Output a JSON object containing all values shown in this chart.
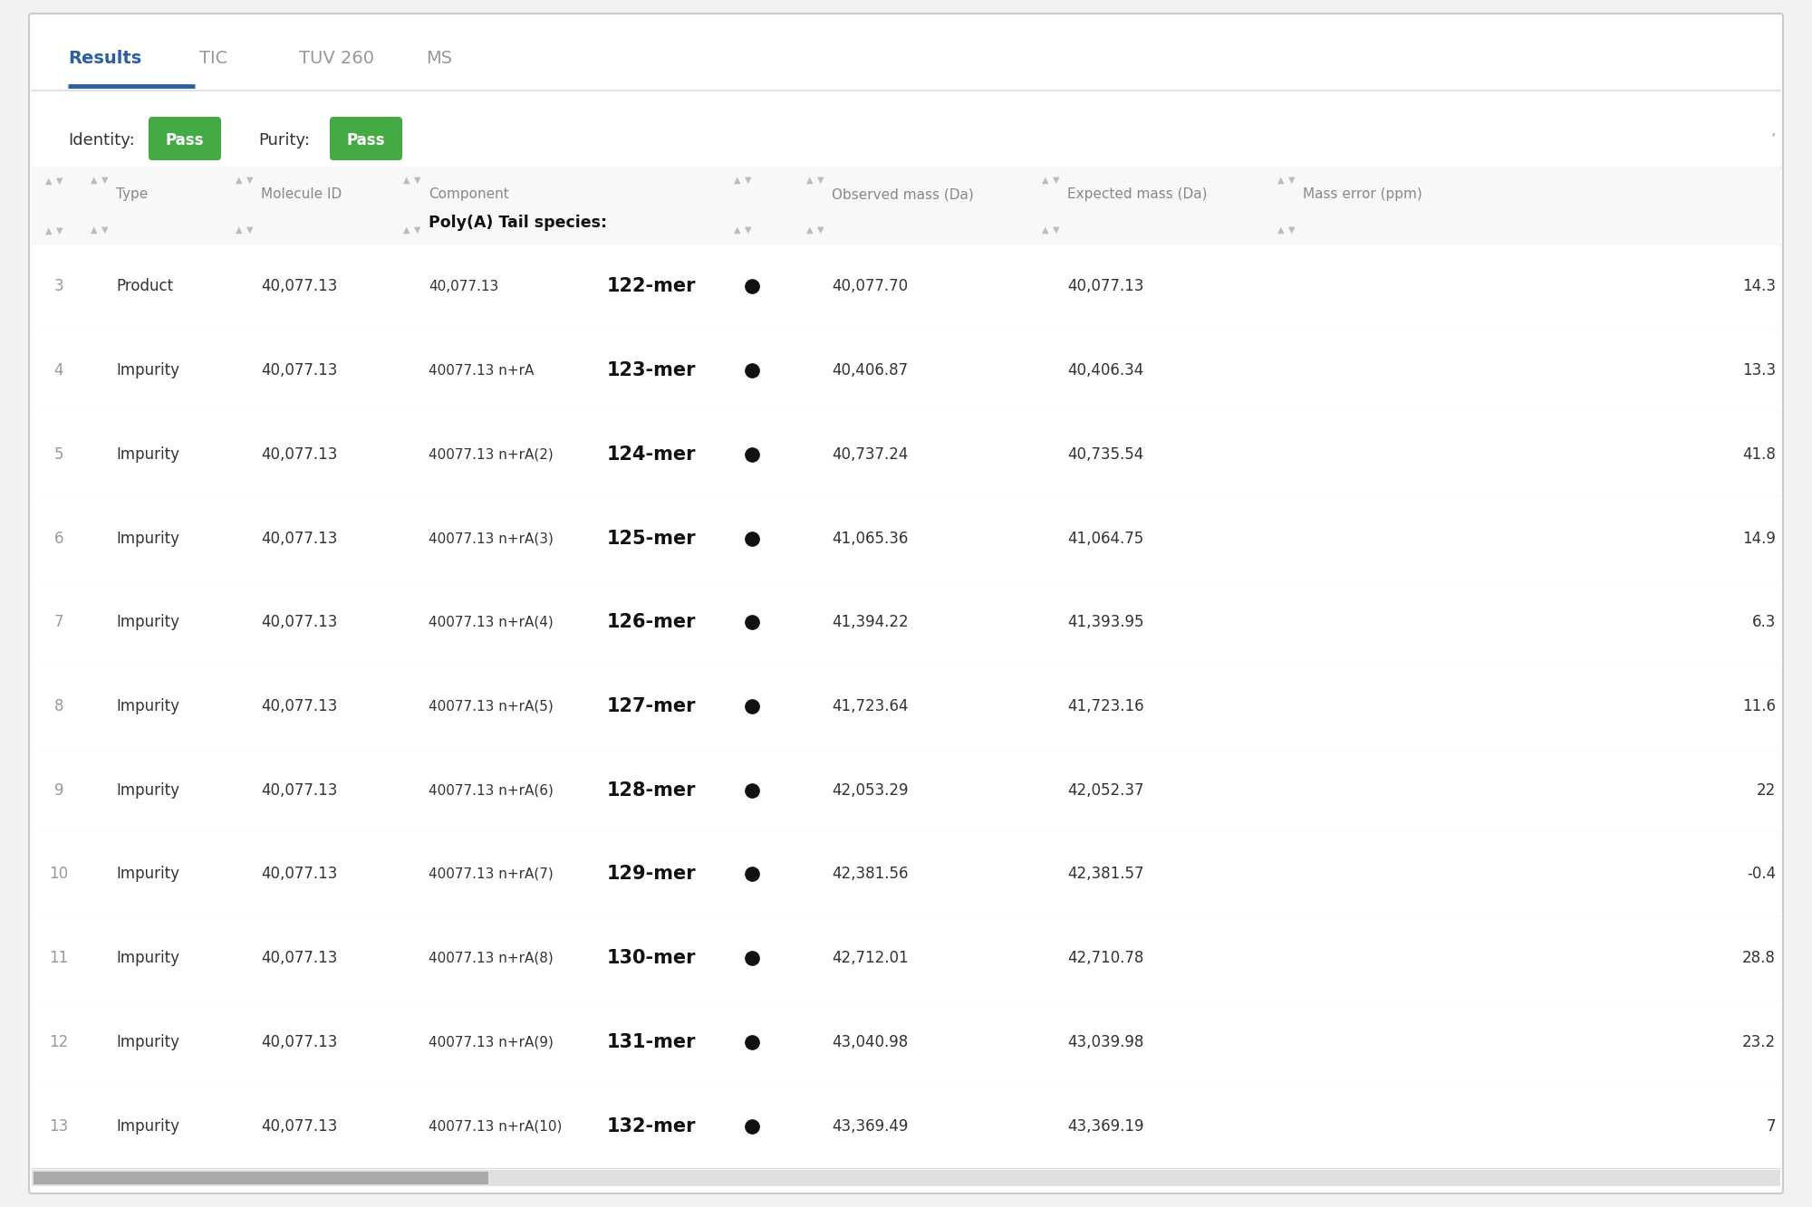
{
  "bg_color": "#f2f2f2",
  "card_color": "#ffffff",
  "outer_border_color": "#cccccc",
  "tab_labels": [
    "Results",
    "TIC",
    "TUV 260",
    "MS"
  ],
  "tab_active_color": "#2d5fa0",
  "tab_text_color_active": "#2d5fa0",
  "tab_text_color_inactive": "#999999",
  "active_underline_color": "#2d5fa0",
  "identity_label": "Identity:",
  "purity_label": "Purity:",
  "pass_bg_color": "#44aa44",
  "pass_text": "Pass",
  "header_text_color": "#888888",
  "row_divider_color": "#e8e8e8",
  "header_divider_color": "#dddddd",
  "rows": [
    {
      "num": "3",
      "type": "Product",
      "mol_id": "40,077.13",
      "component": "40,077.13",
      "poly_a": "122-mer",
      "obs_mass": "40,077.70",
      "exp_mass": "40,077.13",
      "mass_err": "14.3"
    },
    {
      "num": "4",
      "type": "Impurity",
      "mol_id": "40,077.13",
      "component": "40077.13 n+rA",
      "poly_a": "123-mer",
      "obs_mass": "40,406.87",
      "exp_mass": "40,406.34",
      "mass_err": "13.3"
    },
    {
      "num": "5",
      "type": "Impurity",
      "mol_id": "40,077.13",
      "component": "40077.13 n+rA(2)",
      "poly_a": "124-mer",
      "obs_mass": "40,737.24",
      "exp_mass": "40,735.54",
      "mass_err": "41.8"
    },
    {
      "num": "6",
      "type": "Impurity",
      "mol_id": "40,077.13",
      "component": "40077.13 n+rA(3)",
      "poly_a": "125-mer",
      "obs_mass": "41,065.36",
      "exp_mass": "41,064.75",
      "mass_err": "14.9"
    },
    {
      "num": "7",
      "type": "Impurity",
      "mol_id": "40,077.13",
      "component": "40077.13 n+rA(4)",
      "poly_a": "126-mer",
      "obs_mass": "41,394.22",
      "exp_mass": "41,393.95",
      "mass_err": "6.3"
    },
    {
      "num": "8",
      "type": "Impurity",
      "mol_id": "40,077.13",
      "component": "40077.13 n+rA(5)",
      "poly_a": "127-mer",
      "obs_mass": "41,723.64",
      "exp_mass": "41,723.16",
      "mass_err": "11.6"
    },
    {
      "num": "9",
      "type": "Impurity",
      "mol_id": "40,077.13",
      "component": "40077.13 n+rA(6)",
      "poly_a": "128-mer",
      "obs_mass": "42,053.29",
      "exp_mass": "42,052.37",
      "mass_err": "22"
    },
    {
      "num": "10",
      "type": "Impurity",
      "mol_id": "40,077.13",
      "component": "40077.13 n+rA(7)",
      "poly_a": "129-mer",
      "obs_mass": "42,381.56",
      "exp_mass": "42,381.57",
      "mass_err": "-0.4"
    },
    {
      "num": "11",
      "type": "Impurity",
      "mol_id": "40,077.13",
      "component": "40077.13 n+rA(8)",
      "poly_a": "130-mer",
      "obs_mass": "42,712.01",
      "exp_mass": "42,710.78",
      "mass_err": "28.8"
    },
    {
      "num": "12",
      "type": "Impurity",
      "mol_id": "40,077.13",
      "component": "40077.13 n+rA(9)",
      "poly_a": "131-mer",
      "obs_mass": "43,040.98",
      "exp_mass": "43,039.98",
      "mass_err": "23.2"
    },
    {
      "num": "13",
      "type": "Impurity",
      "mol_id": "40,077.13",
      "component": "40077.13 n+rA(10)",
      "poly_a": "132-mer",
      "obs_mass": "43,369.49",
      "exp_mass": "43,369.19",
      "mass_err": "7"
    }
  ],
  "scrollbar_color": "#aaaaaa",
  "scrollbar_track_color": "#e0e0e0"
}
